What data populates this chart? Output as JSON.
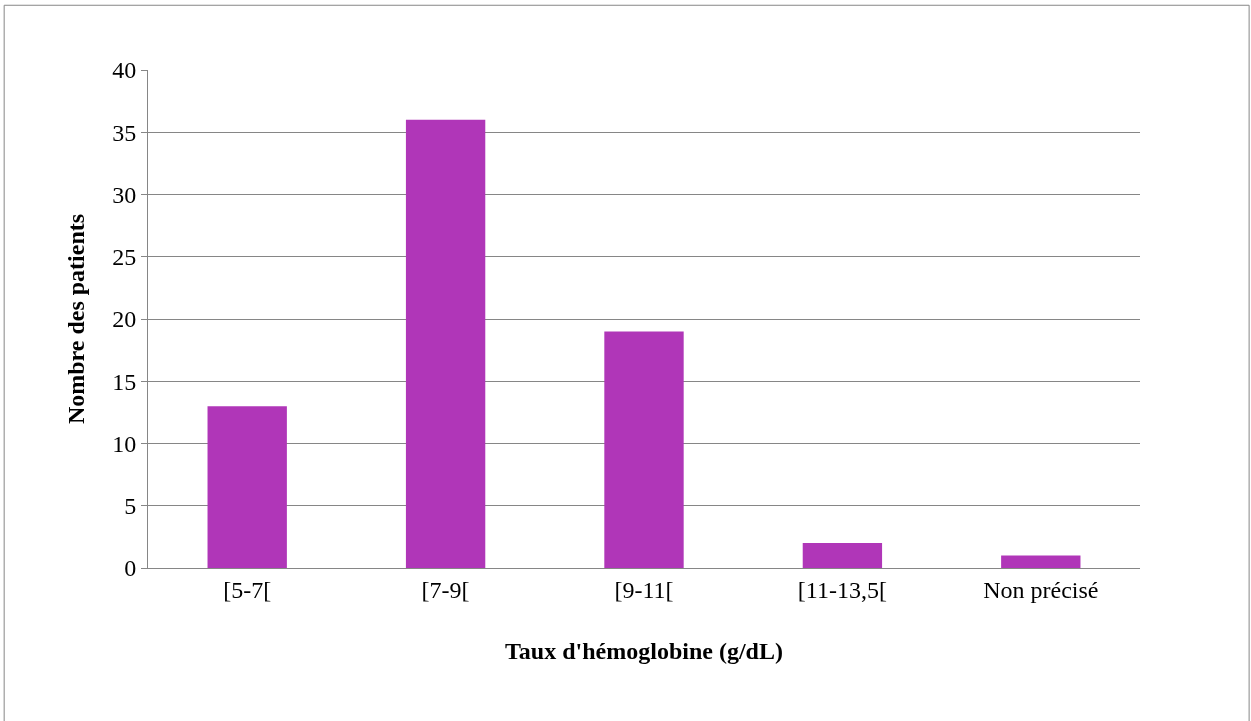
{
  "chart_data": {
    "type": "bar",
    "xlabel": "Taux d'hémoglobine (g/dL)",
    "ylabel": "Nombre des patients",
    "categories": [
      "[5-7[",
      "[7-9[",
      "[9-11[",
      "[11-13,5[",
      "Non précisé"
    ],
    "values": [
      13,
      36,
      19,
      2,
      1
    ],
    "color": "#b036b8",
    "ylim": [
      0,
      40
    ],
    "yticks": [
      0,
      5,
      10,
      15,
      20,
      25,
      30,
      35,
      40
    ],
    "grid": "y",
    "legend": false
  }
}
